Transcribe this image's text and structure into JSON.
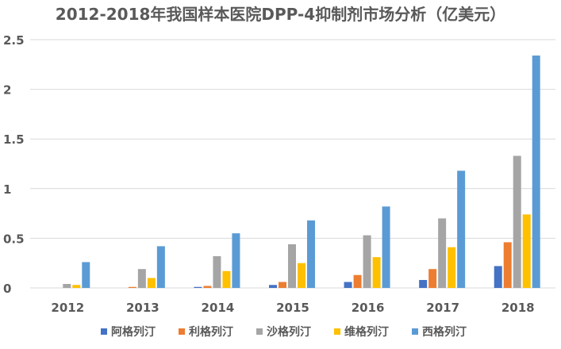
{
  "chart_data": {
    "type": "bar",
    "title": "2012-2018年我国样本医院DPP-4抑制剂市场分析（亿美元）",
    "xlabel": "",
    "ylabel": "",
    "categories": [
      "2012",
      "2013",
      "2014",
      "2015",
      "2016",
      "2017",
      "2018"
    ],
    "ylim": [
      0,
      2.5
    ],
    "yticks": [
      "0",
      "0.5",
      "1",
      "1.5",
      "2",
      "2.5"
    ],
    "ytick_values": [
      0,
      0.5,
      1,
      1.5,
      2,
      2.5
    ],
    "grid": true,
    "legend_position": "bottom",
    "series": [
      {
        "name": "阿格列汀",
        "color": "#4472C4",
        "values": [
          0,
          0,
          0.01,
          0.03,
          0.06,
          0.08,
          0.22
        ]
      },
      {
        "name": "利格列汀",
        "color": "#ED7D31",
        "values": [
          0,
          0.01,
          0.02,
          0.06,
          0.13,
          0.19,
          0.46
        ]
      },
      {
        "name": "沙格列汀",
        "color": "#A5A5A5",
        "values": [
          0.04,
          0.19,
          0.32,
          0.44,
          0.53,
          0.7,
          1.33
        ]
      },
      {
        "name": "维格列汀",
        "color": "#FFC000",
        "values": [
          0.03,
          0.1,
          0.17,
          0.25,
          0.31,
          0.41,
          0.74
        ]
      },
      {
        "name": "西格列汀",
        "color": "#5B9BD5",
        "values": [
          0.26,
          0.42,
          0.55,
          0.68,
          0.82,
          1.18,
          2.34
        ]
      }
    ]
  }
}
